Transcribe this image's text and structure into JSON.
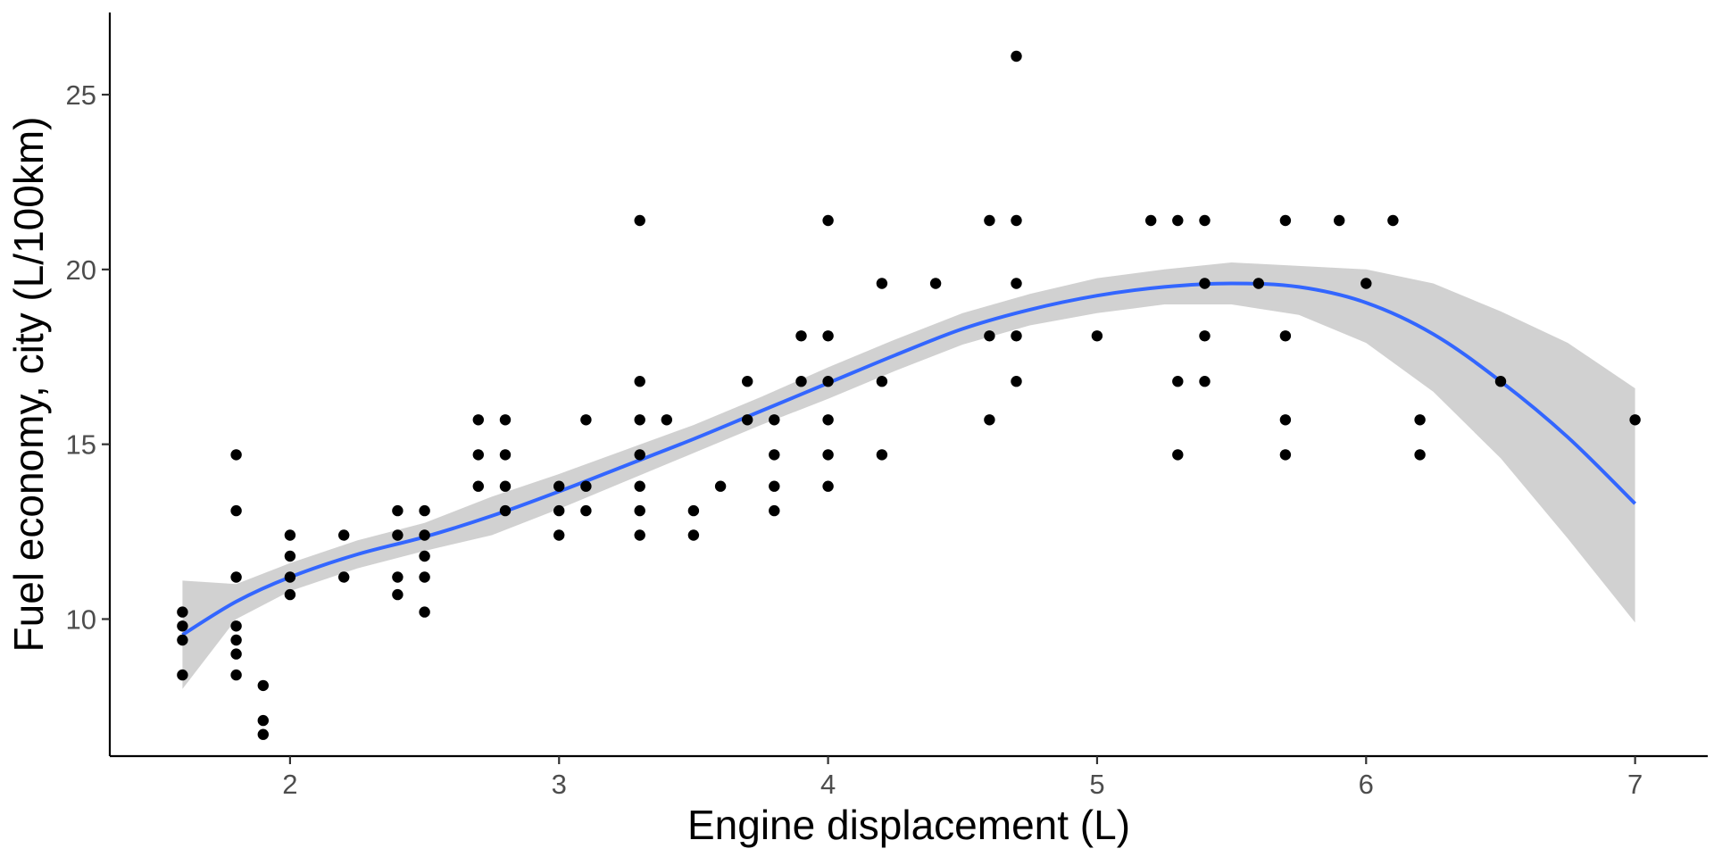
{
  "chart_data": {
    "type": "scatter",
    "title": "",
    "xlabel": "Engine displacement (L)",
    "ylabel": "Fuel economy, city (L/100km)",
    "xlim": [
      1.33,
      7.27
    ],
    "ylim": [
      6.08,
      27.35
    ],
    "x_ticks": [
      2,
      3,
      4,
      5,
      6,
      7
    ],
    "y_ticks": [
      10,
      15,
      20,
      25
    ],
    "grid": false,
    "legend": "none",
    "colors": {
      "points": "#000000",
      "smooth_line": "#3366FF",
      "ribbon": "#cccccc"
    },
    "points": [
      [
        1.6,
        8.4
      ],
      [
        1.6,
        9.4
      ],
      [
        1.6,
        9.8
      ],
      [
        1.6,
        10.2
      ],
      [
        1.8,
        8.4
      ],
      [
        1.8,
        9.0
      ],
      [
        1.8,
        9.4
      ],
      [
        1.8,
        9.8
      ],
      [
        1.8,
        11.2
      ],
      [
        1.8,
        13.1
      ],
      [
        1.8,
        14.7
      ],
      [
        1.9,
        6.7
      ],
      [
        1.9,
        7.1
      ],
      [
        1.9,
        8.1
      ],
      [
        2.0,
        10.7
      ],
      [
        2.0,
        11.2
      ],
      [
        2.0,
        11.8
      ],
      [
        2.0,
        12.4
      ],
      [
        2.2,
        11.2
      ],
      [
        2.2,
        12.4
      ],
      [
        2.4,
        10.7
      ],
      [
        2.4,
        11.2
      ],
      [
        2.4,
        12.4
      ],
      [
        2.4,
        13.1
      ],
      [
        2.5,
        10.2
      ],
      [
        2.5,
        11.2
      ],
      [
        2.5,
        11.8
      ],
      [
        2.5,
        12.4
      ],
      [
        2.5,
        13.1
      ],
      [
        2.7,
        13.8
      ],
      [
        2.7,
        14.7
      ],
      [
        2.7,
        15.7
      ],
      [
        2.8,
        13.1
      ],
      [
        2.8,
        13.8
      ],
      [
        2.8,
        14.7
      ],
      [
        2.8,
        15.7
      ],
      [
        3.0,
        12.4
      ],
      [
        3.0,
        13.1
      ],
      [
        3.0,
        13.8
      ],
      [
        3.1,
        13.1
      ],
      [
        3.1,
        13.8
      ],
      [
        3.1,
        15.7
      ],
      [
        3.3,
        12.4
      ],
      [
        3.3,
        13.1
      ],
      [
        3.3,
        13.8
      ],
      [
        3.3,
        14.7
      ],
      [
        3.3,
        15.7
      ],
      [
        3.3,
        16.8
      ],
      [
        3.3,
        21.4
      ],
      [
        3.4,
        15.7
      ],
      [
        3.5,
        12.4
      ],
      [
        3.5,
        13.1
      ],
      [
        3.6,
        13.8
      ],
      [
        3.7,
        15.7
      ],
      [
        3.7,
        16.8
      ],
      [
        3.8,
        13.1
      ],
      [
        3.8,
        13.8
      ],
      [
        3.8,
        14.7
      ],
      [
        3.8,
        15.7
      ],
      [
        3.9,
        16.8
      ],
      [
        3.9,
        18.1
      ],
      [
        4.0,
        13.8
      ],
      [
        4.0,
        14.7
      ],
      [
        4.0,
        15.7
      ],
      [
        4.0,
        16.8
      ],
      [
        4.0,
        18.1
      ],
      [
        4.0,
        21.4
      ],
      [
        4.2,
        14.7
      ],
      [
        4.2,
        16.8
      ],
      [
        4.2,
        19.6
      ],
      [
        4.4,
        19.6
      ],
      [
        4.6,
        15.7
      ],
      [
        4.6,
        18.1
      ],
      [
        4.6,
        21.4
      ],
      [
        4.7,
        16.8
      ],
      [
        4.7,
        18.1
      ],
      [
        4.7,
        19.6
      ],
      [
        4.7,
        21.4
      ],
      [
        4.7,
        26.1
      ],
      [
        5.0,
        18.1
      ],
      [
        5.2,
        21.4
      ],
      [
        5.3,
        14.7
      ],
      [
        5.3,
        16.8
      ],
      [
        5.3,
        21.4
      ],
      [
        5.4,
        16.8
      ],
      [
        5.4,
        18.1
      ],
      [
        5.4,
        19.6
      ],
      [
        5.4,
        21.4
      ],
      [
        5.6,
        19.6
      ],
      [
        5.7,
        14.7
      ],
      [
        5.7,
        15.7
      ],
      [
        5.7,
        18.1
      ],
      [
        5.7,
        21.4
      ],
      [
        5.9,
        21.4
      ],
      [
        6.0,
        19.6
      ],
      [
        6.1,
        21.4
      ],
      [
        6.2,
        14.7
      ],
      [
        6.2,
        15.7
      ],
      [
        6.5,
        16.8
      ],
      [
        7.0,
        15.7
      ]
    ],
    "smooth": {
      "x": [
        1.6,
        1.8,
        2.0,
        2.25,
        2.5,
        2.75,
        3.0,
        3.25,
        3.5,
        3.75,
        4.0,
        4.25,
        4.5,
        4.75,
        5.0,
        5.25,
        5.5,
        5.75,
        6.0,
        6.25,
        6.5,
        6.75,
        7.0
      ],
      "y": [
        9.55,
        10.5,
        11.2,
        11.85,
        12.35,
        12.95,
        13.65,
        14.4,
        15.15,
        15.95,
        16.75,
        17.55,
        18.3,
        18.85,
        19.25,
        19.5,
        19.6,
        19.5,
        19.05,
        18.15,
        16.8,
        15.2,
        13.3
      ],
      "ymin": [
        8.0,
        10.0,
        10.8,
        11.45,
        11.95,
        12.4,
        13.15,
        13.95,
        14.75,
        15.55,
        16.3,
        17.1,
        17.85,
        18.4,
        18.75,
        19.0,
        19.0,
        18.7,
        17.9,
        16.5,
        14.6,
        12.3,
        9.9
      ],
      "ymax": [
        11.1,
        11.0,
        11.6,
        12.25,
        12.75,
        13.5,
        14.15,
        14.85,
        15.55,
        16.35,
        17.2,
        18.0,
        18.75,
        19.3,
        19.75,
        20.0,
        20.2,
        20.1,
        20.0,
        19.6,
        18.8,
        17.9,
        16.6
      ]
    }
  }
}
